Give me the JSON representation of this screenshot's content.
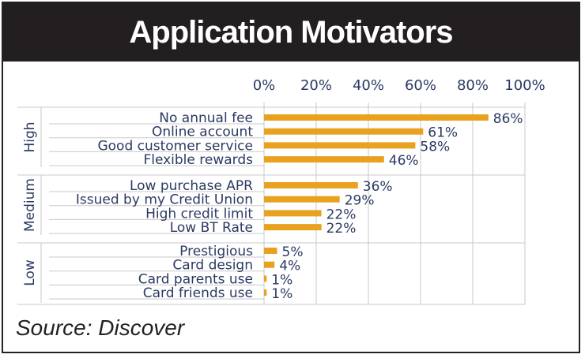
{
  "header": {
    "title": "Application Motivators"
  },
  "footer": {
    "source": "Source: Discover"
  },
  "colors": {
    "bar": "#e8a21f",
    "text": "#2b3a63",
    "grid": "#c9c9c9",
    "title_bg": "#231f20"
  },
  "chart_data": {
    "type": "bar",
    "orientation": "horizontal",
    "title": "Application Motivators",
    "xlabel": "",
    "ylabel": "",
    "xlim": [
      0,
      100
    ],
    "xticks": [
      "0%",
      "20%",
      "40%",
      "60%",
      "80%",
      "100%"
    ],
    "grid": true,
    "groups": [
      {
        "name": "High",
        "categories": [
          "No annual fee",
          "Online account",
          "Good customer service",
          "Flexible rewards"
        ],
        "values": [
          86,
          61,
          58,
          46
        ],
        "labels": [
          "86%",
          "61%",
          "58%",
          "46%"
        ]
      },
      {
        "name": "Medium",
        "categories": [
          "Low purchase APR",
          "Issued by my Credit Union",
          "High credit limit",
          "Low BT Rate"
        ],
        "values": [
          36,
          29,
          22,
          22
        ],
        "labels": [
          "36%",
          "29%",
          "22%",
          "22%"
        ]
      },
      {
        "name": "Low",
        "categories": [
          "Prestigious",
          "Card design",
          "Card parents use",
          "Card friends use"
        ],
        "values": [
          5,
          4,
          1,
          1
        ],
        "labels": [
          "5%",
          "4%",
          "1%",
          "1%"
        ]
      }
    ]
  }
}
